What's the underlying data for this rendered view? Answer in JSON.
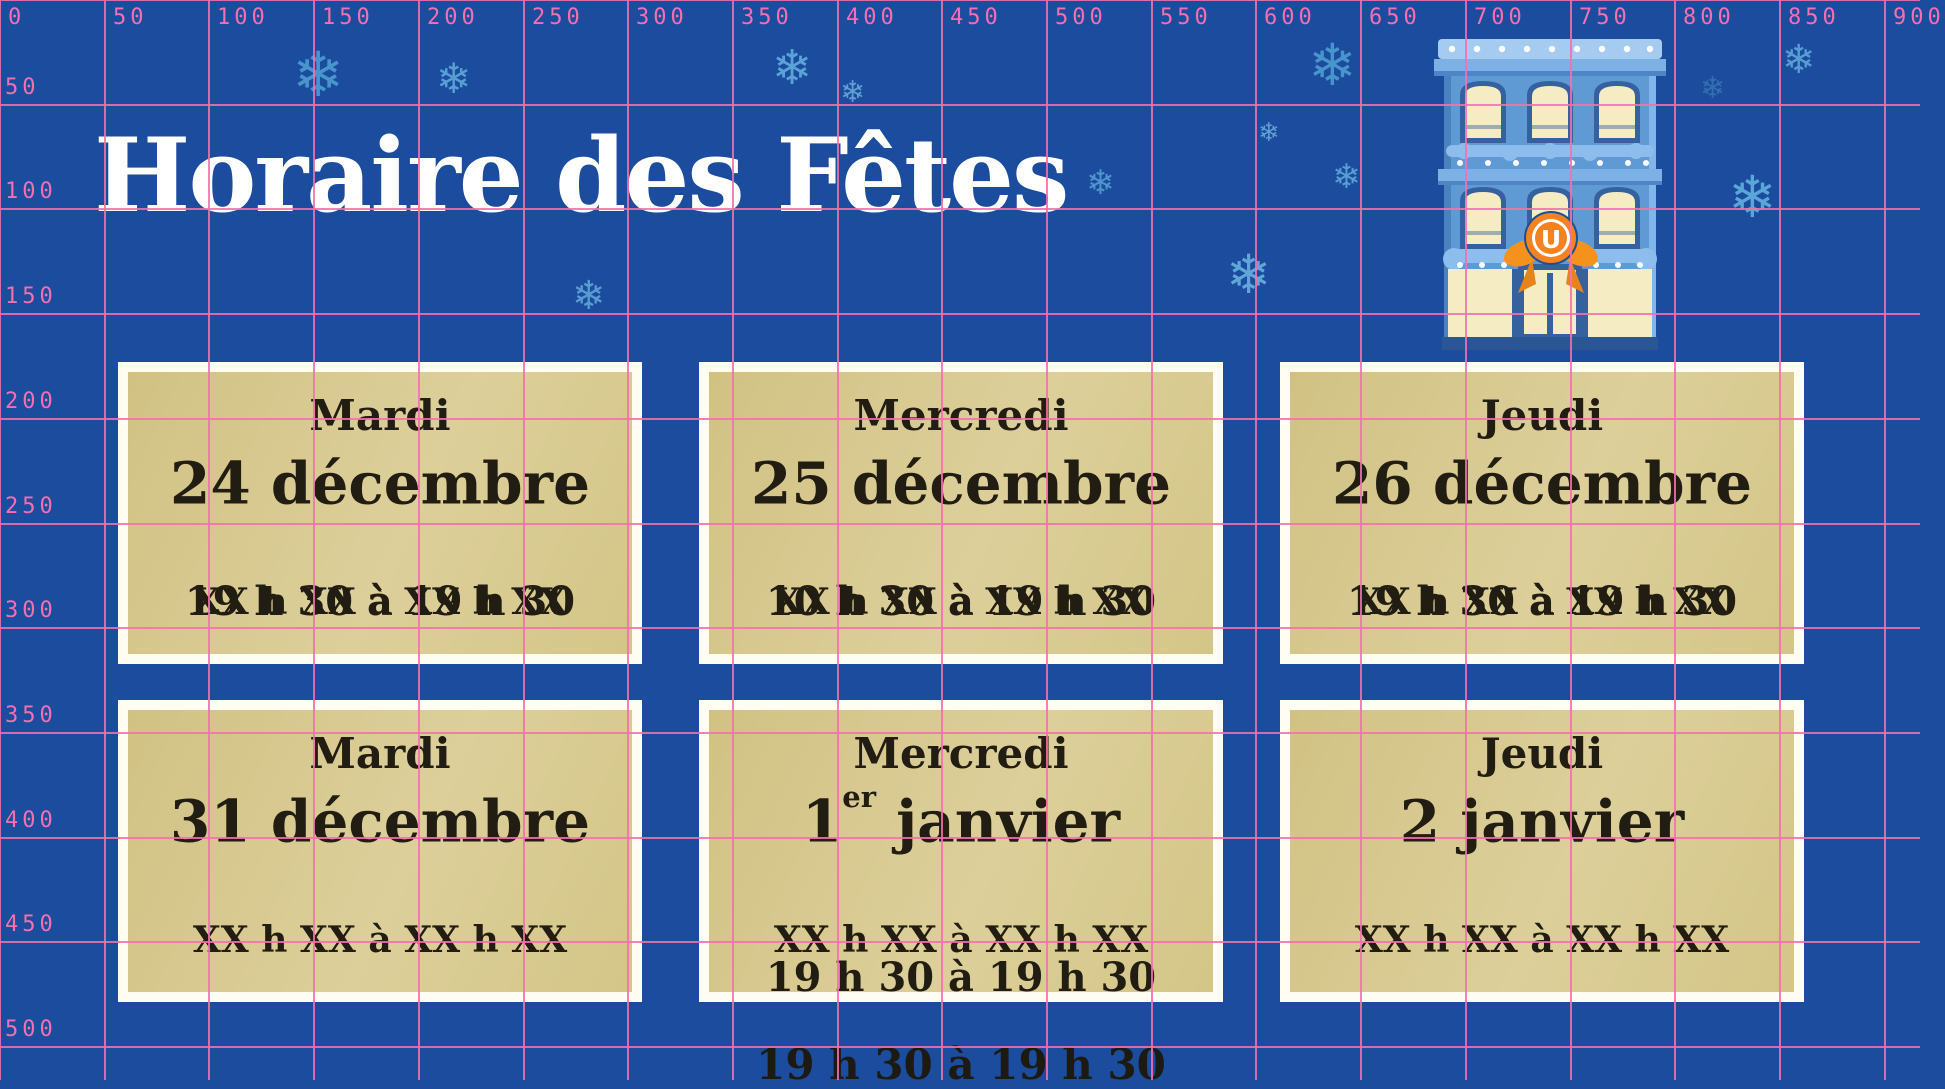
{
  "header": {
    "title": "Horaire des Fêtes"
  },
  "grid": {
    "top_labels": [
      "0",
      "50",
      "100",
      "150",
      "200",
      "250",
      "300",
      "350",
      "400",
      "450",
      "500",
      "550",
      "600",
      "650",
      "700",
      "750",
      "800",
      "850",
      "900"
    ],
    "left_labels": [
      "50",
      "100",
      "150",
      "200",
      "250",
      "300",
      "350",
      "400",
      "450",
      "500"
    ],
    "line_color": "#f371ad"
  },
  "decor": {
    "snowflake_glyph": "❄",
    "store_logo_letter": "U"
  },
  "colors": {
    "background_blue": "#1b4c9e",
    "card_tan": "#d6c88d",
    "card_frame": "#fffcf2",
    "card_text": "#221d12",
    "grid_pink": "#f371ad",
    "logo_orange": "#f58220",
    "window_yellow": "#f5ecc3",
    "building_blue": "#5f9ad4"
  },
  "cards": [
    {
      "day": "Mardi",
      "date_a": "24 décembre",
      "date_sup": "",
      "date_b": "",
      "placeholder": "XX h XX à XX h XX",
      "time": "19 h 30 à 19 h 30"
    },
    {
      "day": "Mercredi",
      "date_a": "25 décembre",
      "date_sup": "",
      "date_b": "",
      "placeholder": "XX h XX à XX h XX",
      "time": "10 h 30 à 19 h 30"
    },
    {
      "day": "Jeudi",
      "date_a": "26 décembre",
      "date_sup": "",
      "date_b": "",
      "placeholder": "XX h XX à XX h XX",
      "time": "19 h 30 à 19 h 30"
    },
    {
      "day": "Mardi",
      "date_a": "31 décembre",
      "date_sup": "",
      "date_b": "",
      "placeholder": "XX h XX à XX h XX",
      "time": ""
    },
    {
      "day": "Mercredi",
      "date_a": "1",
      "date_sup": "er",
      "date_b": " janvier",
      "placeholder": "XX h XX à XX h XX",
      "time": "19 h 30 à 19 h 30"
    },
    {
      "day": "Jeudi",
      "date_a": "2 janvier",
      "date_sup": "",
      "date_b": "",
      "placeholder": "XX h XX à XX h XX",
      "time": ""
    }
  ],
  "footer": {
    "overflow_time": "19 h 30 à 19 h 30"
  }
}
